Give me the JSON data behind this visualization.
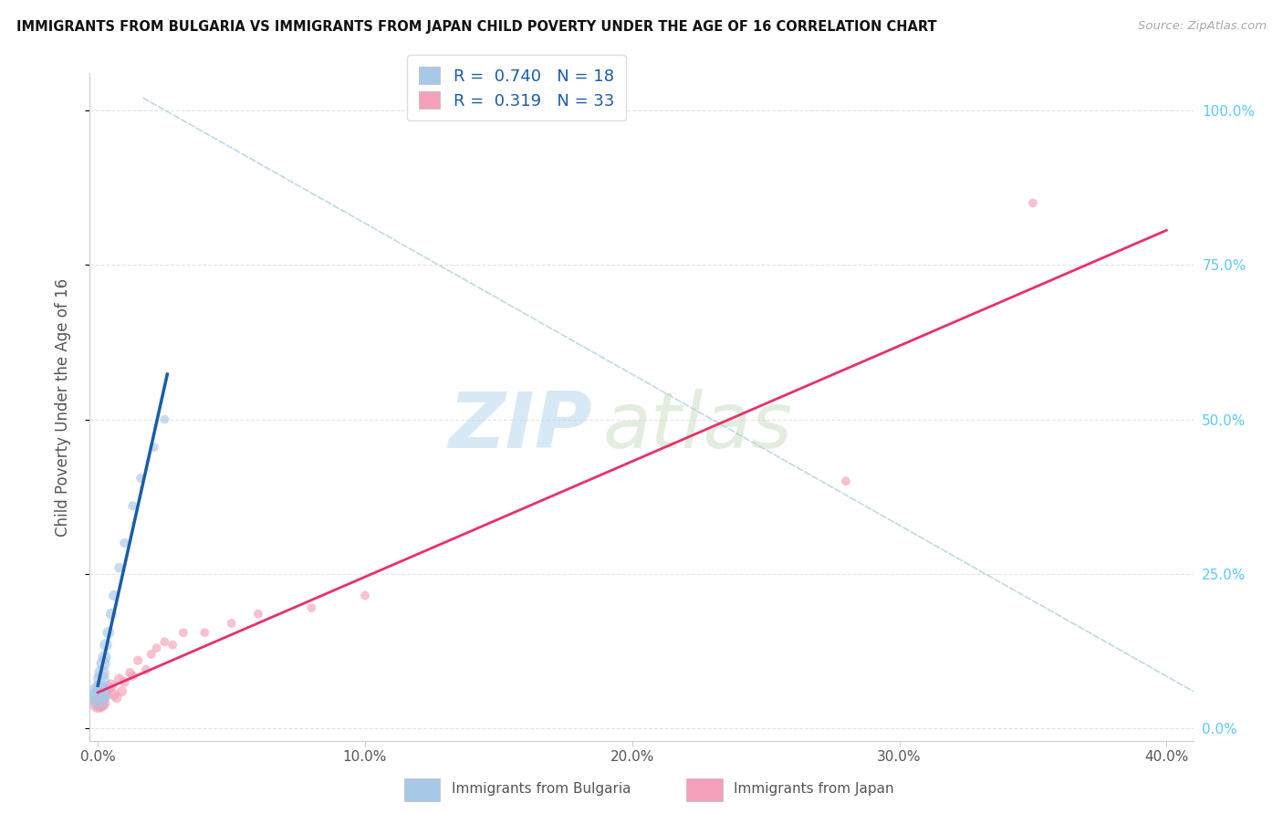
{
  "title": "IMMIGRANTS FROM BULGARIA VS IMMIGRANTS FROM JAPAN CHILD POVERTY UNDER THE AGE OF 16 CORRELATION CHART",
  "source": "Source: ZipAtlas.com",
  "ylabel": "Child Poverty Under the Age of 16",
  "xlim": [
    -0.003,
    0.41
  ],
  "ylim": [
    -0.02,
    1.06
  ],
  "R_bulgaria": 0.74,
  "N_bulgaria": 18,
  "R_japan": 0.319,
  "N_japan": 33,
  "color_bulgaria": "#a8c8e8",
  "color_japan": "#f4a0b8",
  "line_color_bulgaria": "#1a5ca8",
  "line_color_japan": "#e8306a",
  "legend_label_bulgaria": "Immigrants from Bulgaria",
  "legend_label_japan": "Immigrants from Japan",
  "bg_color": "#ffffff",
  "grid_color": "#dddddd",
  "xtick_labels": [
    "0.0%",
    "10.0%",
    "20.0%",
    "30.0%",
    "40.0%"
  ],
  "ytick_labels": [
    "0.0%",
    "25.0%",
    "50.0%",
    "75.0%",
    "100.0%"
  ],
  "xtick_vals": [
    0.0,
    0.1,
    0.2,
    0.3,
    0.4
  ],
  "ytick_vals": [
    0.0,
    0.25,
    0.5,
    0.75,
    1.0
  ],
  "bulgaria_x": [
    0.0003,
    0.0005,
    0.0008,
    0.001,
    0.0013,
    0.0015,
    0.002,
    0.0025,
    0.003,
    0.004,
    0.005,
    0.006,
    0.008,
    0.01,
    0.013,
    0.016,
    0.021,
    0.025
  ],
  "bulgaria_y": [
    0.05,
    0.06,
    0.055,
    0.065,
    0.08,
    0.09,
    0.105,
    0.115,
    0.135,
    0.155,
    0.185,
    0.215,
    0.26,
    0.3,
    0.36,
    0.405,
    0.455,
    0.5
  ],
  "bulgaria_sizes": [
    300,
    250,
    200,
    180,
    160,
    140,
    120,
    105,
    95,
    85,
    75,
    68,
    60,
    55,
    52,
    50,
    50,
    50
  ],
  "japan_x": [
    0.0002,
    0.0004,
    0.0006,
    0.0008,
    0.001,
    0.0013,
    0.0015,
    0.002,
    0.0025,
    0.003,
    0.004,
    0.005,
    0.006,
    0.007,
    0.008,
    0.009,
    0.01,
    0.012,
    0.013,
    0.015,
    0.018,
    0.02,
    0.022,
    0.025,
    0.028,
    0.032,
    0.04,
    0.05,
    0.06,
    0.08,
    0.1,
    0.28,
    0.35
  ],
  "japan_y": [
    0.04,
    0.05,
    0.04,
    0.055,
    0.04,
    0.06,
    0.05,
    0.04,
    0.06,
    0.055,
    0.065,
    0.07,
    0.055,
    0.05,
    0.08,
    0.06,
    0.075,
    0.09,
    0.085,
    0.11,
    0.095,
    0.12,
    0.13,
    0.14,
    0.135,
    0.155,
    0.155,
    0.17,
    0.185,
    0.195,
    0.215,
    0.4,
    0.85
  ],
  "japan_sizes": [
    210,
    180,
    160,
    150,
    140,
    130,
    120,
    110,
    100,
    95,
    88,
    82,
    76,
    72,
    68,
    64,
    62,
    58,
    56,
    54,
    52,
    51,
    50,
    50,
    50,
    50,
    50,
    50,
    50,
    50,
    50,
    50,
    50
  ]
}
